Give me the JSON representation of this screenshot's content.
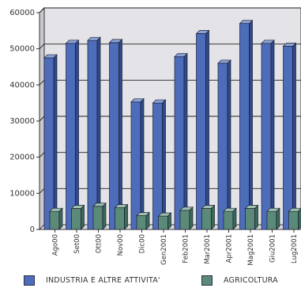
{
  "chart_data": {
    "type": "bar",
    "categories": [
      "Ago00",
      "Set00",
      "Ott00",
      "Nov00",
      "Dic00",
      "Gen2001",
      "Feb2001",
      "Mar2001",
      "Apr2001",
      "Mag2001",
      "Giu2001",
      "Lug2001"
    ],
    "series": [
      {
        "name": "INDUSTRIA E ALTRE ATTIVITA'",
        "color": "#4d6dba",
        "values": [
          47500,
          51500,
          52300,
          51700,
          35300,
          35000,
          47800,
          54200,
          46000,
          57000,
          51500,
          50700
        ]
      },
      {
        "name": "AGRICOLTURA",
        "color": "#5b8a78",
        "values": [
          5000,
          5800,
          6400,
          6000,
          3800,
          3700,
          5300,
          5800,
          5000,
          5800,
          5000,
          5000
        ]
      }
    ],
    "ylim": [
      0,
      60000
    ],
    "yticks": [
      0,
      10000,
      20000,
      30000,
      40000,
      50000,
      60000
    ],
    "ytick_labels": [
      "0",
      "10000",
      "20000",
      "30000",
      "40000",
      "50000",
      "60000"
    ],
    "grid": true,
    "legend_position": "bottom",
    "style": "3d",
    "colors": {
      "plot_background": "#e4e4e8",
      "bar_top": "#8aa3d6",
      "bar_side": "#2f4a8a",
      "agri_top": "#9cc0b0",
      "agri_side": "#3b6a57"
    }
  }
}
